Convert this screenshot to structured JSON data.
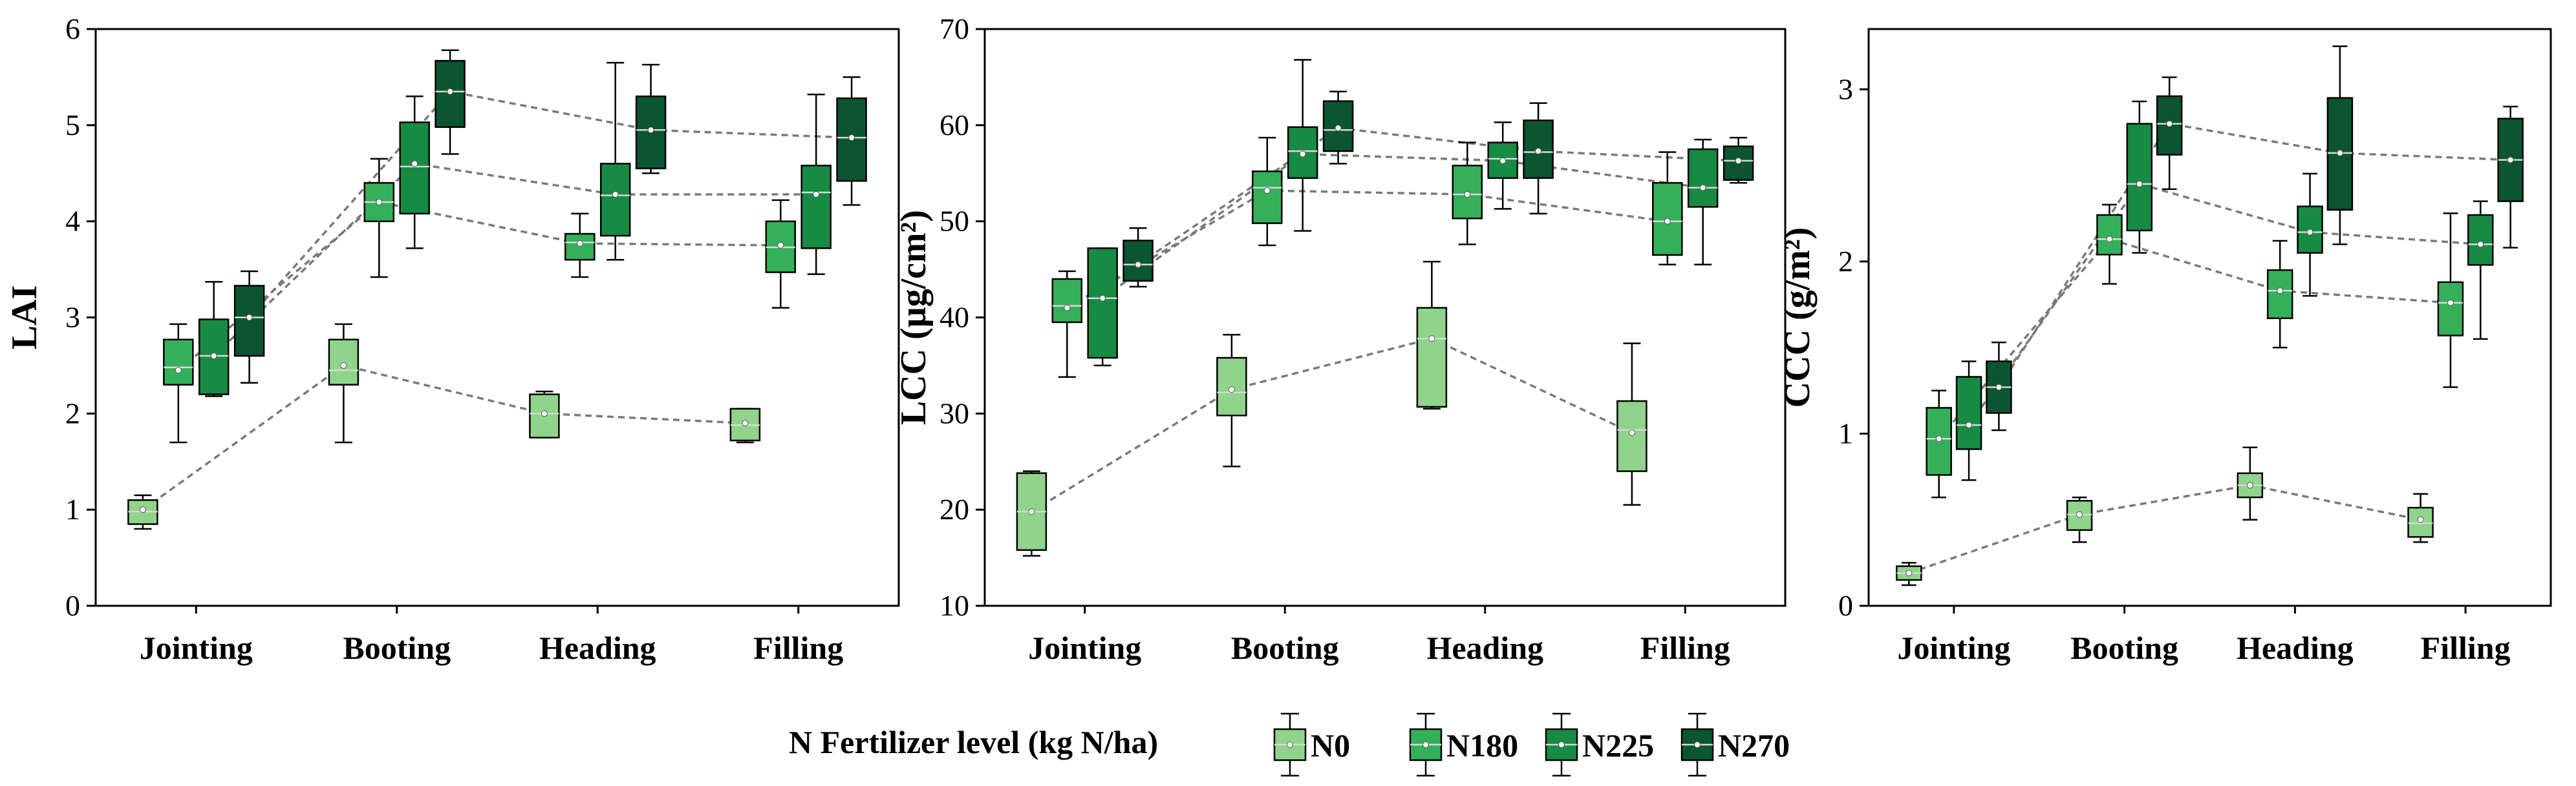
{
  "colors": {
    "N0": "#8fd48a",
    "N180": "#35b05a",
    "N225": "#178a44",
    "N270": "#0b5530"
  },
  "legend": {
    "title": "N Fertilizer level (kg N/ha)",
    "entries": [
      {
        "key": "N0",
        "label": "N0"
      },
      {
        "key": "N180",
        "label": "N180"
      },
      {
        "key": "N225",
        "label": "N225"
      },
      {
        "key": "N270",
        "label": "N270"
      }
    ]
  },
  "chart_data": [
    {
      "type": "box",
      "ylabel": "LAI",
      "ylim": [
        0,
        6
      ],
      "yticks": [
        0,
        1,
        2,
        3,
        4,
        5,
        6
      ],
      "categories": [
        "Jointing",
        "Booting",
        "Heading",
        "Filling"
      ],
      "series": [
        {
          "name": "N0",
          "stats": [
            {
              "min": 0.8,
              "q1": 0.85,
              "median": 0.98,
              "q3": 1.1,
              "max": 1.15,
              "mean": 1.0
            },
            {
              "min": 1.7,
              "q1": 2.3,
              "median": 2.45,
              "q3": 2.77,
              "max": 2.93,
              "mean": 2.5
            },
            {
              "min": 1.75,
              "q1": 1.75,
              "median": 2.0,
              "q3": 2.2,
              "max": 2.23,
              "mean": 2.0
            },
            {
              "min": 1.7,
              "q1": 1.72,
              "median": 1.88,
              "q3": 2.05,
              "max": 2.05,
              "mean": 1.9
            }
          ]
        },
        {
          "name": "N180",
          "stats": [
            {
              "min": 1.7,
              "q1": 2.3,
              "median": 2.48,
              "q3": 2.77,
              "max": 2.93,
              "mean": 2.45
            },
            {
              "min": 3.42,
              "q1": 4.0,
              "median": 4.2,
              "q3": 4.4,
              "max": 4.65,
              "mean": 4.2
            },
            {
              "min": 3.42,
              "q1": 3.6,
              "median": 3.78,
              "q3": 3.87,
              "max": 4.08,
              "mean": 3.77
            },
            {
              "min": 3.1,
              "q1": 3.47,
              "median": 3.73,
              "q3": 4.0,
              "max": 4.22,
              "mean": 3.75
            }
          ]
        },
        {
          "name": "N225",
          "stats": [
            {
              "min": 2.18,
              "q1": 2.2,
              "median": 2.6,
              "q3": 2.98,
              "max": 3.37,
              "mean": 2.6
            },
            {
              "min": 3.72,
              "q1": 4.08,
              "median": 4.57,
              "q3": 5.03,
              "max": 5.3,
              "mean": 4.6
            },
            {
              "min": 3.6,
              "q1": 3.85,
              "median": 4.27,
              "q3": 4.6,
              "max": 5.65,
              "mean": 4.28
            },
            {
              "min": 3.45,
              "q1": 3.72,
              "median": 4.3,
              "q3": 4.58,
              "max": 5.32,
              "mean": 4.28
            }
          ]
        },
        {
          "name": "N270",
          "stats": [
            {
              "min": 2.32,
              "q1": 2.6,
              "median": 3.0,
              "q3": 3.33,
              "max": 3.48,
              "mean": 3.0
            },
            {
              "min": 4.7,
              "q1": 4.98,
              "median": 5.35,
              "q3": 5.67,
              "max": 5.78,
              "mean": 5.35
            },
            {
              "min": 4.5,
              "q1": 4.55,
              "median": 4.95,
              "q3": 5.3,
              "max": 5.63,
              "mean": 4.95
            },
            {
              "min": 4.17,
              "q1": 4.42,
              "median": 4.87,
              "q3": 5.28,
              "max": 5.5,
              "mean": 4.87
            }
          ]
        }
      ]
    },
    {
      "type": "box",
      "ylabel": "LCC (μg/cm²)",
      "ylim": [
        10,
        70
      ],
      "yticks": [
        10,
        20,
        30,
        40,
        50,
        60,
        70
      ],
      "categories": [
        "Jointing",
        "Booting",
        "Heading",
        "Filling"
      ],
      "series": [
        {
          "name": "N0",
          "stats": [
            {
              "min": 15.2,
              "q1": 15.8,
              "median": 19.8,
              "q3": 23.8,
              "max": 24.0,
              "mean": 19.8
            },
            {
              "min": 24.5,
              "q1": 29.8,
              "median": 32.2,
              "q3": 35.8,
              "max": 38.2,
              "mean": 32.5
            },
            {
              "min": 30.5,
              "q1": 30.7,
              "median": 37.8,
              "q3": 41.0,
              "max": 45.8,
              "mean": 37.8
            },
            {
              "min": 20.5,
              "q1": 24.0,
              "median": 28.3,
              "q3": 31.3,
              "max": 37.3,
              "mean": 28.0
            }
          ]
        },
        {
          "name": "N180",
          "stats": [
            {
              "min": 33.8,
              "q1": 39.5,
              "median": 41.2,
              "q3": 44.0,
              "max": 44.8,
              "mean": 41.0
            },
            {
              "min": 47.5,
              "q1": 49.8,
              "median": 53.5,
              "q3": 55.2,
              "max": 58.7,
              "mean": 53.2
            },
            {
              "min": 47.6,
              "q1": 50.3,
              "median": 52.8,
              "q3": 55.8,
              "max": 58.2,
              "mean": 52.8
            },
            {
              "min": 45.5,
              "q1": 46.5,
              "median": 50.0,
              "q3": 54.0,
              "max": 57.2,
              "mean": 50.0
            }
          ]
        },
        {
          "name": "N225",
          "stats": [
            {
              "min": 35.0,
              "q1": 35.8,
              "median": 42.0,
              "q3": 47.2,
              "max": 47.2,
              "mean": 42.0
            },
            {
              "min": 49.0,
              "q1": 54.5,
              "median": 57.3,
              "q3": 59.8,
              "max": 66.8,
              "mean": 57.0
            },
            {
              "min": 51.3,
              "q1": 54.5,
              "median": 56.5,
              "q3": 58.2,
              "max": 60.3,
              "mean": 56.3
            },
            {
              "min": 45.5,
              "q1": 51.5,
              "median": 53.5,
              "q3": 57.5,
              "max": 58.5,
              "mean": 53.5
            }
          ]
        },
        {
          "name": "N270",
          "stats": [
            {
              "min": 43.2,
              "q1": 43.8,
              "median": 45.5,
              "q3": 48.0,
              "max": 49.3,
              "mean": 45.5
            },
            {
              "min": 56.0,
              "q1": 57.3,
              "median": 59.5,
              "q3": 62.5,
              "max": 63.5,
              "mean": 59.7
            },
            {
              "min": 50.8,
              "q1": 54.5,
              "median": 57.2,
              "q3": 60.5,
              "max": 62.3,
              "mean": 57.3
            },
            {
              "min": 54.0,
              "q1": 54.3,
              "median": 56.3,
              "q3": 57.8,
              "max": 58.7,
              "mean": 56.3
            }
          ]
        }
      ]
    },
    {
      "type": "box",
      "ylabel": "CCC (g/m²)",
      "ylim": [
        0,
        3.35
      ],
      "yticks": [
        0,
        1,
        2,
        3
      ],
      "categories": [
        "Jointing",
        "Booting",
        "Heading",
        "Filling"
      ],
      "series": [
        {
          "name": "N0",
          "stats": [
            {
              "min": 0.12,
              "q1": 0.15,
              "median": 0.19,
              "q3": 0.23,
              "max": 0.25,
              "mean": 0.19
            },
            {
              "min": 0.37,
              "q1": 0.44,
              "median": 0.53,
              "q3": 0.61,
              "max": 0.63,
              "mean": 0.53
            },
            {
              "min": 0.5,
              "q1": 0.63,
              "median": 0.7,
              "q3": 0.77,
              "max": 0.92,
              "mean": 0.7
            },
            {
              "min": 0.37,
              "q1": 0.4,
              "median": 0.48,
              "q3": 0.57,
              "max": 0.65,
              "mean": 0.5
            }
          ]
        },
        {
          "name": "N180",
          "stats": [
            {
              "min": 0.63,
              "q1": 0.76,
              "median": 0.97,
              "q3": 1.15,
              "max": 1.25,
              "mean": 0.97
            },
            {
              "min": 1.87,
              "q1": 2.04,
              "median": 2.13,
              "q3": 2.27,
              "max": 2.33,
              "mean": 2.13
            },
            {
              "min": 1.5,
              "q1": 1.67,
              "median": 1.83,
              "q3": 1.95,
              "max": 2.12,
              "mean": 1.83
            },
            {
              "min": 1.27,
              "q1": 1.57,
              "median": 1.76,
              "q3": 1.88,
              "max": 2.28,
              "mean": 1.76
            }
          ]
        },
        {
          "name": "N225",
          "stats": [
            {
              "min": 0.73,
              "q1": 0.91,
              "median": 1.05,
              "q3": 1.33,
              "max": 1.42,
              "mean": 1.05
            },
            {
              "min": 2.05,
              "q1": 2.18,
              "median": 2.45,
              "q3": 2.8,
              "max": 2.93,
              "mean": 2.45
            },
            {
              "min": 1.8,
              "q1": 2.05,
              "median": 2.17,
              "q3": 2.32,
              "max": 2.51,
              "mean": 2.17
            },
            {
              "min": 1.55,
              "q1": 1.98,
              "median": 2.1,
              "q3": 2.27,
              "max": 2.35,
              "mean": 2.1
            }
          ]
        },
        {
          "name": "N270",
          "stats": [
            {
              "min": 1.02,
              "q1": 1.12,
              "median": 1.27,
              "q3": 1.42,
              "max": 1.53,
              "mean": 1.27
            },
            {
              "min": 2.42,
              "q1": 2.62,
              "median": 2.8,
              "q3": 2.96,
              "max": 3.07,
              "mean": 2.8
            },
            {
              "min": 2.1,
              "q1": 2.3,
              "median": 2.63,
              "q3": 2.95,
              "max": 3.25,
              "mean": 2.63
            },
            {
              "min": 2.08,
              "q1": 2.35,
              "median": 2.59,
              "q3": 2.83,
              "max": 2.9,
              "mean": 2.59
            }
          ]
        }
      ]
    }
  ]
}
